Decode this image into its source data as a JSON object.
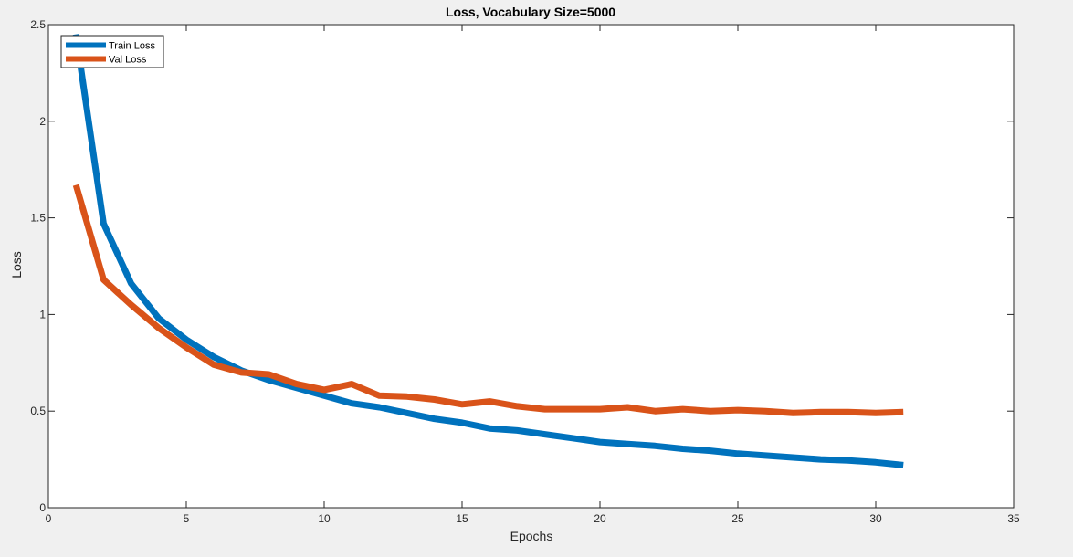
{
  "chart_data": {
    "type": "line",
    "title": "Loss, Vocabulary Size=5000",
    "xlabel": "Epochs",
    "ylabel": "Loss",
    "xlim": [
      0,
      35
    ],
    "ylim": [
      0,
      2.5
    ],
    "xticks": [
      0,
      5,
      10,
      15,
      20,
      25,
      30,
      35
    ],
    "yticks": [
      0,
      0.5,
      1,
      1.5,
      2,
      2.5
    ],
    "xtick_labels": [
      "0",
      "5",
      "10",
      "15",
      "20",
      "25",
      "30",
      "35"
    ],
    "ytick_labels": [
      "0",
      "0.5",
      "1",
      "1.5",
      "2",
      "2.5"
    ],
    "grid": false,
    "legend_position": "top-left",
    "series": [
      {
        "name": "Train Loss",
        "color": "#0072BD",
        "x": [
          1,
          2,
          3,
          4,
          5,
          6,
          7,
          8,
          9,
          10,
          11,
          12,
          13,
          14,
          15,
          16,
          17,
          18,
          19,
          20,
          21,
          22,
          23,
          24,
          25,
          26,
          27,
          28,
          29,
          30,
          31
        ],
        "values": [
          2.45,
          1.47,
          1.16,
          0.98,
          0.87,
          0.78,
          0.71,
          0.66,
          0.62,
          0.58,
          0.54,
          0.52,
          0.49,
          0.46,
          0.44,
          0.41,
          0.4,
          0.38,
          0.36,
          0.34,
          0.33,
          0.32,
          0.305,
          0.295,
          0.28,
          0.27,
          0.26,
          0.25,
          0.245,
          0.235,
          0.22
        ]
      },
      {
        "name": "Val Loss",
        "color": "#D95319",
        "x": [
          1,
          2,
          3,
          4,
          5,
          6,
          7,
          8,
          9,
          10,
          11,
          12,
          13,
          14,
          15,
          16,
          17,
          18,
          19,
          20,
          21,
          22,
          23,
          24,
          25,
          26,
          27,
          28,
          29,
          30,
          31
        ],
        "values": [
          1.67,
          1.18,
          1.05,
          0.93,
          0.83,
          0.74,
          0.7,
          0.69,
          0.64,
          0.61,
          0.64,
          0.58,
          0.575,
          0.56,
          0.535,
          0.55,
          0.525,
          0.51,
          0.51,
          0.51,
          0.52,
          0.5,
          0.51,
          0.5,
          0.505,
          0.5,
          0.49,
          0.495,
          0.495,
          0.49,
          0.495
        ]
      }
    ]
  }
}
